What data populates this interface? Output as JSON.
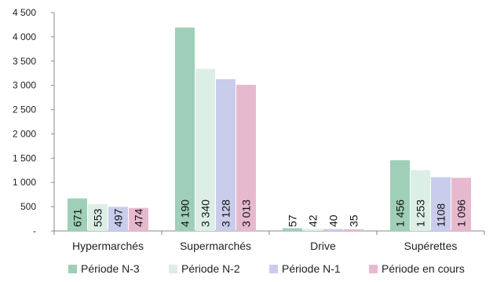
{
  "chart_data": {
    "type": "bar",
    "title": "",
    "xlabel": "",
    "ylabel": "",
    "ylim": [
      0,
      4500
    ],
    "y_ticks": [
      "-",
      "500",
      "1 000",
      "1 500",
      "2 000",
      "2 500",
      "3 000",
      "3 500",
      "4 000",
      "4 500"
    ],
    "categories": [
      "Hypermarchés",
      "Supermarchés",
      "Drive",
      "Supérettes"
    ],
    "series": [
      {
        "name": "Période N-3",
        "color": "#9fcfb8",
        "values": [
          671,
          4190,
          57,
          1456
        ],
        "labels": [
          "671",
          "4 190",
          "57",
          "1 456"
        ]
      },
      {
        "name": "Période N-2",
        "color": "#dcefe6",
        "values": [
          553,
          3340,
          42,
          1253
        ],
        "labels": [
          "553",
          "3 340",
          "42",
          "1 253"
        ]
      },
      {
        "name": "Période N-1",
        "color": "#c9cdeb",
        "values": [
          497,
          3128,
          40,
          1108
        ],
        "labels": [
          "497",
          "3 128",
          "40",
          "1108"
        ]
      },
      {
        "name": "Période en cours",
        "color": "#e7b9cf",
        "values": [
          474,
          3013,
          35,
          1096
        ],
        "labels": [
          "474",
          "3 013",
          "35",
          "1 096"
        ]
      }
    ],
    "grid": false,
    "legend_position": "bottom"
  }
}
